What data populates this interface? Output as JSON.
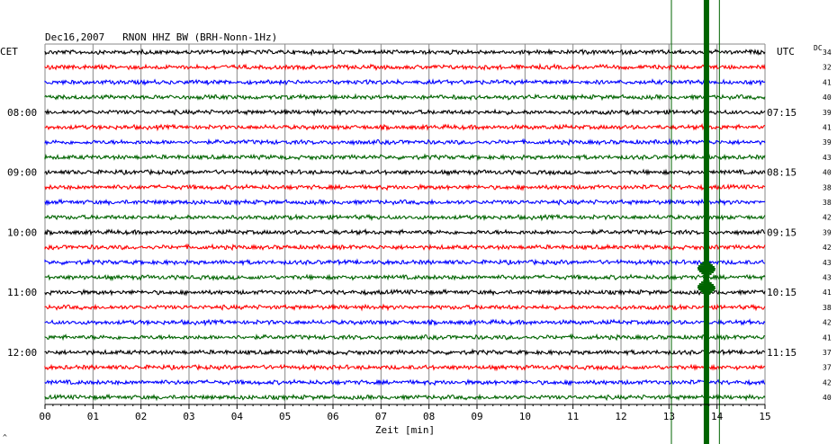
{
  "header": {
    "title": "Dec16,2007   RNON HHZ BW (BRH-Nonn-1Hz)",
    "left_zone": "CET",
    "right_zone": "UTC",
    "dc_label": "DC"
  },
  "chart_data": {
    "type": "line",
    "title": "Dec16,2007   RNON HHZ BW (BRH-Nonn-1Hz)",
    "xlabel": "Zeit [min]",
    "ylabel": "",
    "xlim": [
      0,
      15
    ],
    "x_ticks": [
      "00",
      "01",
      "02",
      "03",
      "04",
      "05",
      "06",
      "07",
      "08",
      "09",
      "10",
      "11",
      "12",
      "13",
      "14",
      "15"
    ],
    "grid": true,
    "left_time_labels": [
      {
        "trace": 4,
        "label": "08:00"
      },
      {
        "trace": 8,
        "label": "09:00"
      },
      {
        "trace": 12,
        "label": "10:00"
      },
      {
        "trace": 16,
        "label": "11:00"
      },
      {
        "trace": 20,
        "label": "12:00"
      }
    ],
    "right_time_labels": [
      {
        "trace": 4,
        "label": "07:15"
      },
      {
        "trace": 8,
        "label": "08:15"
      },
      {
        "trace": 12,
        "label": "09:15"
      },
      {
        "trace": 16,
        "label": "10:15"
      },
      {
        "trace": 20,
        "label": "11:15"
      }
    ],
    "trace_colors": [
      "#000000",
      "#ff0000",
      "#0000ff",
      "#006400"
    ],
    "dc_values": [
      "34",
      "32",
      "41",
      "40",
      "39",
      "41",
      "39",
      "43",
      "40",
      "38",
      "38",
      "42",
      "39",
      "42",
      "43",
      "43",
      "41",
      "38",
      "42",
      "41",
      "37",
      "37",
      "42",
      "40"
    ],
    "event_markers": [
      {
        "x_min": 13.05,
        "color": "#006400",
        "type": "thin"
      },
      {
        "x_min": 13.78,
        "color": "#006400",
        "type": "thick"
      },
      {
        "x_min": 14.05,
        "color": "#006400",
        "type": "thin"
      }
    ],
    "bottom_left_mark": "^"
  }
}
